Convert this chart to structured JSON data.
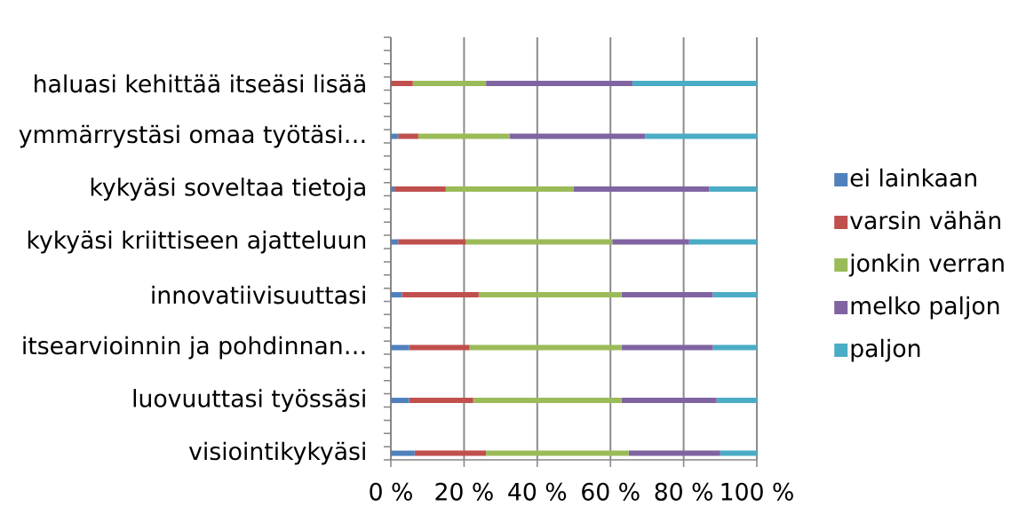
{
  "chart_data": {
    "type": "bar",
    "orientation": "horizontal",
    "stacked": true,
    "categories": [
      "haluasi kehittää itseäsi lisää",
      "ymmärrystäsi omaa työtäsi…",
      "kykyäsi soveltaa tietoja",
      "kykyäsi kriittiseen ajatteluun",
      "innovatiivisuuttasi",
      "itsearvioinnin ja pohdinnan…",
      "luovuuttasi työssäsi",
      "visiointikykyäsi"
    ],
    "series": [
      {
        "name": "ei lainkaan",
        "color": "#4f81bd",
        "values": [
          0,
          2,
          1,
          2,
          3,
          5,
          5,
          6.5
        ]
      },
      {
        "name": "varsin vähän",
        "color": "#c0504d",
        "values": [
          6,
          5.5,
          14,
          18.5,
          21,
          16.5,
          17.5,
          19.5
        ]
      },
      {
        "name": "jonkin verran",
        "color": "#9bbb59",
        "values": [
          20,
          25,
          35,
          40,
          39,
          41.5,
          40.5,
          39
        ]
      },
      {
        "name": "melko paljon",
        "color": "#8064a2",
        "values": [
          40,
          37,
          37,
          21,
          25,
          25,
          26,
          25
        ]
      },
      {
        "name": "paljon",
        "color": "#4bacc6",
        "values": [
          34,
          30.5,
          13,
          18.5,
          12,
          12,
          11,
          10
        ]
      }
    ],
    "xlim": [
      0,
      100
    ],
    "xticks": [
      {
        "value": 0,
        "label": "0 %"
      },
      {
        "value": 20,
        "label": "20 %"
      },
      {
        "value": 40,
        "label": "40 %"
      },
      {
        "value": 60,
        "label": "60 %"
      },
      {
        "value": 80,
        "label": "80 %"
      },
      {
        "value": 100,
        "label": "100 %"
      }
    ],
    "grid": "x",
    "legend": "right"
  }
}
